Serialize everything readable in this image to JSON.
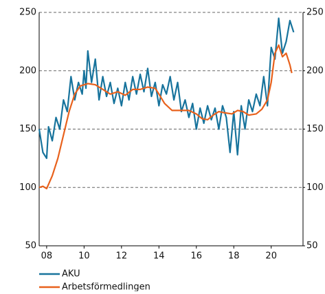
{
  "chart_data": {
    "type": "line",
    "xlim": [
      2007.6,
      2021.7
    ],
    "xticks": [
      {
        "value": 2008,
        "label": "08"
      },
      {
        "value": 2010,
        "label": "10"
      },
      {
        "value": 2012,
        "label": "12"
      },
      {
        "value": 2014,
        "label": "14"
      },
      {
        "value": 2016,
        "label": "16"
      },
      {
        "value": 2018,
        "label": "18"
      },
      {
        "value": 2020,
        "label": "20"
      }
    ],
    "ylim": [
      50,
      250
    ],
    "yticks": [
      50,
      100,
      150,
      200,
      250
    ],
    "y2lim": [
      50,
      250
    ],
    "y2ticks": [
      50,
      100,
      150,
      200,
      250
    ],
    "grid": true,
    "legend": "bottom",
    "series": [
      {
        "name": "AKU",
        "color": "#17739c",
        "x": [
          2007.6,
          2007.8,
          2008.0,
          2008.1,
          2008.3,
          2008.5,
          2008.7,
          2008.9,
          2009.1,
          2009.3,
          2009.5,
          2009.7,
          2009.9,
          2010.0,
          2010.1,
          2010.2,
          2010.4,
          2010.6,
          2010.8,
          2011.0,
          2011.2,
          2011.4,
          2011.6,
          2011.8,
          2012.0,
          2012.2,
          2012.4,
          2012.6,
          2012.8,
          2013.0,
          2013.2,
          2013.4,
          2013.6,
          2013.8,
          2014.0,
          2014.2,
          2014.4,
          2014.6,
          2014.8,
          2015.0,
          2015.2,
          2015.4,
          2015.6,
          2015.8,
          2016.0,
          2016.2,
          2016.4,
          2016.6,
          2016.8,
          2017.0,
          2017.2,
          2017.4,
          2017.6,
          2017.8,
          2018.0,
          2018.2,
          2018.4,
          2018.6,
          2018.8,
          2019.0,
          2019.2,
          2019.4,
          2019.6,
          2019.8,
          2020.0,
          2020.2,
          2020.4,
          2020.6,
          2020.8,
          2021.0,
          2021.2
        ],
        "values": [
          150,
          130,
          125,
          152,
          140,
          160,
          150,
          175,
          165,
          195,
          175,
          190,
          180,
          200,
          185,
          217,
          190,
          210,
          175,
          195,
          178,
          190,
          172,
          185,
          170,
          190,
          175,
          195,
          180,
          197,
          182,
          202,
          178,
          190,
          170,
          188,
          180,
          195,
          175,
          190,
          165,
          175,
          160,
          172,
          150,
          168,
          155,
          170,
          158,
          168,
          150,
          170,
          160,
          130,
          165,
          128,
          170,
          150,
          175,
          165,
          180,
          170,
          195,
          170,
          220,
          210,
          245,
          215,
          225,
          243,
          233
        ]
      },
      {
        "name": "Arbetsförmedlingen",
        "color": "#e8611c",
        "x": [
          2007.6,
          2007.8,
          2008.0,
          2008.3,
          2008.6,
          2008.9,
          2009.2,
          2009.5,
          2009.8,
          2010.2,
          2010.6,
          2011.0,
          2011.4,
          2011.8,
          2012.2,
          2012.6,
          2013.0,
          2013.4,
          2013.8,
          2014.0,
          2014.3,
          2014.7,
          2015.2,
          2015.6,
          2016.0,
          2016.3,
          2016.6,
          2016.9,
          2017.2,
          2017.5,
          2017.9,
          2018.2,
          2018.5,
          2018.8,
          2019.2,
          2019.5,
          2019.8,
          2020.0,
          2020.2,
          2020.4,
          2020.6,
          2020.8,
          2021.0,
          2021.1
        ],
        "values": [
          100,
          101,
          99,
          110,
          125,
          145,
          165,
          180,
          187,
          189,
          188,
          184,
          180,
          182,
          179,
          184,
          184,
          186,
          185,
          180,
          172,
          166,
          166,
          166,
          163,
          159,
          158,
          162,
          165,
          164,
          163,
          166,
          165,
          162,
          163,
          167,
          175,
          190,
          215,
          222,
          212,
          215,
          205,
          198
        ]
      }
    ]
  }
}
